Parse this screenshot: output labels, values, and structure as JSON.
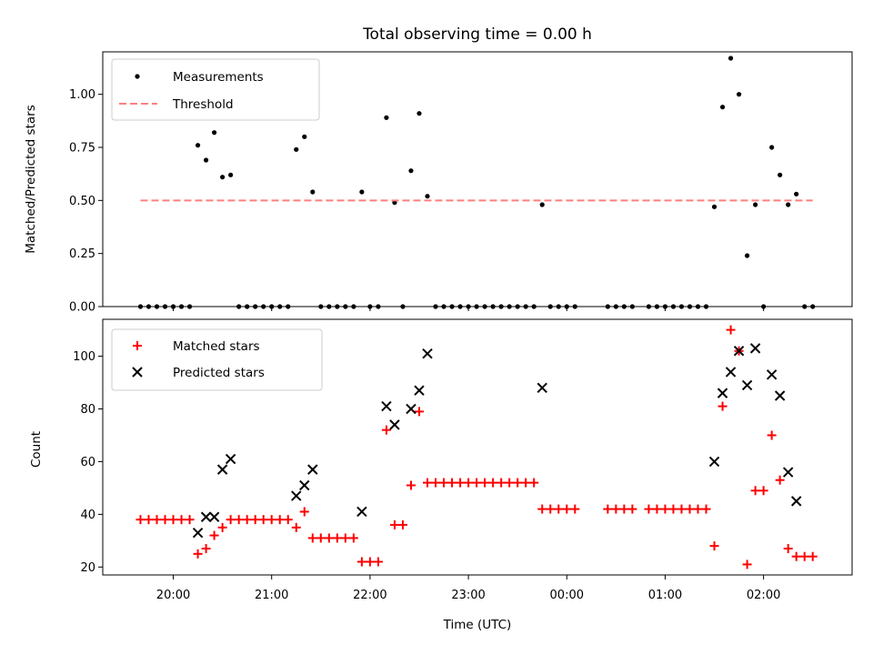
{
  "chart_data": [
    {
      "type": "scatter",
      "title": "Total observing time = 0.00 h",
      "xlabel": "",
      "ylabel": "Matched/Predicted stars",
      "ylim": [
        0,
        1.2
      ],
      "y_ticks": [
        "0.00",
        "0.25",
        "0.50",
        "0.75",
        "1.00"
      ],
      "legend": {
        "placement": "top-left",
        "entries": [
          "Measurements",
          "Threshold"
        ]
      },
      "colors": {
        "measurements": "#000000",
        "threshold": "#ff7f7f"
      },
      "threshold": {
        "name": "Threshold",
        "value": 0.5,
        "x_range": [
          "19:40",
          "02:30"
        ]
      },
      "series": [
        {
          "name": "Measurements",
          "points": [
            [
              "19:40",
              0
            ],
            [
              "19:45",
              0
            ],
            [
              "19:50",
              0
            ],
            [
              "19:55",
              0
            ],
            [
              "20:00",
              0
            ],
            [
              "20:05",
              0
            ],
            [
              "20:10",
              0
            ],
            [
              "20:15",
              0.76
            ],
            [
              "20:20",
              0.69
            ],
            [
              "20:25",
              0.82
            ],
            [
              "20:30",
              0.61
            ],
            [
              "20:35",
              0.62
            ],
            [
              "20:40",
              0
            ],
            [
              "20:45",
              0
            ],
            [
              "20:50",
              0
            ],
            [
              "20:55",
              0
            ],
            [
              "21:00",
              0
            ],
            [
              "21:05",
              0
            ],
            [
              "21:10",
              0
            ],
            [
              "21:15",
              0.74
            ],
            [
              "21:20",
              0.8
            ],
            [
              "21:25",
              0.54
            ],
            [
              "21:30",
              0
            ],
            [
              "21:35",
              0
            ],
            [
              "21:40",
              0
            ],
            [
              "21:45",
              0
            ],
            [
              "21:50",
              0
            ],
            [
              "21:55",
              0.54
            ],
            [
              "22:00",
              0
            ],
            [
              "22:05",
              0
            ],
            [
              "22:10",
              0.89
            ],
            [
              "22:15",
              0.49
            ],
            [
              "22:20",
              0
            ],
            [
              "22:25",
              0.64
            ],
            [
              "22:30",
              0.91
            ],
            [
              "22:35",
              0.52
            ],
            [
              "22:40",
              0
            ],
            [
              "22:45",
              0
            ],
            [
              "22:50",
              0
            ],
            [
              "22:55",
              0
            ],
            [
              "23:00",
              0
            ],
            [
              "23:05",
              0
            ],
            [
              "23:10",
              0
            ],
            [
              "23:15",
              0
            ],
            [
              "23:20",
              0
            ],
            [
              "23:25",
              0
            ],
            [
              "23:30",
              0
            ],
            [
              "23:35",
              0
            ],
            [
              "23:40",
              0
            ],
            [
              "23:45",
              0.48
            ],
            [
              "23:50",
              0
            ],
            [
              "23:55",
              0
            ],
            [
              "00:00",
              0
            ],
            [
              "00:05",
              0
            ],
            [
              "00:25",
              0
            ],
            [
              "00:30",
              0
            ],
            [
              "00:35",
              0
            ],
            [
              "00:40",
              0
            ],
            [
              "00:50",
              0
            ],
            [
              "00:55",
              0
            ],
            [
              "01:00",
              0
            ],
            [
              "01:05",
              0
            ],
            [
              "01:10",
              0
            ],
            [
              "01:15",
              0
            ],
            [
              "01:20",
              0
            ],
            [
              "01:25",
              0
            ],
            [
              "01:30",
              0.47
            ],
            [
              "01:35",
              0.94
            ],
            [
              "01:40",
              1.17
            ],
            [
              "01:45",
              1.0
            ],
            [
              "01:50",
              0.24
            ],
            [
              "01:55",
              0.48
            ],
            [
              "02:00",
              0
            ],
            [
              "02:05",
              0.75
            ],
            [
              "02:10",
              0.62
            ],
            [
              "02:15",
              0.48
            ],
            [
              "02:20",
              0.53
            ],
            [
              "02:25",
              0
            ],
            [
              "02:30",
              0
            ]
          ]
        }
      ]
    },
    {
      "type": "scatter",
      "title": "",
      "xlabel": "Time (UTC)",
      "ylabel": "Count",
      "ylim": [
        17,
        114
      ],
      "y_ticks": [
        "20",
        "40",
        "60",
        "80",
        "100"
      ],
      "x_ticks": [
        "20:00",
        "21:00",
        "22:00",
        "23:00",
        "00:00",
        "01:00",
        "02:00"
      ],
      "legend": {
        "placement": "top-left",
        "entries": [
          "Matched stars",
          "Predicted stars"
        ]
      },
      "colors": {
        "matched": "#ff0000",
        "predicted": "#000000"
      },
      "series": [
        {
          "name": "Matched stars",
          "points": [
            [
              "19:40",
              38
            ],
            [
              "19:45",
              38
            ],
            [
              "19:50",
              38
            ],
            [
              "19:55",
              38
            ],
            [
              "20:00",
              38
            ],
            [
              "20:05",
              38
            ],
            [
              "20:10",
              38
            ],
            [
              "20:15",
              25
            ],
            [
              "20:20",
              27
            ],
            [
              "20:25",
              32
            ],
            [
              "20:30",
              35
            ],
            [
              "20:35",
              38
            ],
            [
              "20:40",
              38
            ],
            [
              "20:45",
              38
            ],
            [
              "20:50",
              38
            ],
            [
              "20:55",
              38
            ],
            [
              "21:00",
              38
            ],
            [
              "21:05",
              38
            ],
            [
              "21:10",
              38
            ],
            [
              "21:15",
              35
            ],
            [
              "21:20",
              41
            ],
            [
              "21:25",
              31
            ],
            [
              "21:30",
              31
            ],
            [
              "21:35",
              31
            ],
            [
              "21:40",
              31
            ],
            [
              "21:45",
              31
            ],
            [
              "21:50",
              31
            ],
            [
              "21:55",
              22
            ],
            [
              "22:00",
              22
            ],
            [
              "22:05",
              22
            ],
            [
              "22:10",
              72
            ],
            [
              "22:15",
              36
            ],
            [
              "22:20",
              36
            ],
            [
              "22:25",
              51
            ],
            [
              "22:30",
              79
            ],
            [
              "22:35",
              52
            ],
            [
              "22:40",
              52
            ],
            [
              "22:45",
              52
            ],
            [
              "22:50",
              52
            ],
            [
              "22:55",
              52
            ],
            [
              "23:00",
              52
            ],
            [
              "23:05",
              52
            ],
            [
              "23:10",
              52
            ],
            [
              "23:15",
              52
            ],
            [
              "23:20",
              52
            ],
            [
              "23:25",
              52
            ],
            [
              "23:30",
              52
            ],
            [
              "23:35",
              52
            ],
            [
              "23:40",
              52
            ],
            [
              "23:45",
              42
            ],
            [
              "23:50",
              42
            ],
            [
              "23:55",
              42
            ],
            [
              "00:00",
              42
            ],
            [
              "00:05",
              42
            ],
            [
              "00:25",
              42
            ],
            [
              "00:30",
              42
            ],
            [
              "00:35",
              42
            ],
            [
              "00:40",
              42
            ],
            [
              "00:50",
              42
            ],
            [
              "00:55",
              42
            ],
            [
              "01:00",
              42
            ],
            [
              "01:05",
              42
            ],
            [
              "01:10",
              42
            ],
            [
              "01:15",
              42
            ],
            [
              "01:20",
              42
            ],
            [
              "01:25",
              42
            ],
            [
              "01:30",
              28
            ],
            [
              "01:35",
              81
            ],
            [
              "01:40",
              110
            ],
            [
              "01:45",
              102
            ],
            [
              "01:50",
              21
            ],
            [
              "01:55",
              49
            ],
            [
              "02:00",
              49
            ],
            [
              "02:05",
              70
            ],
            [
              "02:10",
              53
            ],
            [
              "02:15",
              27
            ],
            [
              "02:20",
              24
            ],
            [
              "02:25",
              24
            ],
            [
              "02:30",
              24
            ]
          ]
        },
        {
          "name": "Predicted stars",
          "points": [
            [
              "20:15",
              33
            ],
            [
              "20:20",
              39
            ],
            [
              "20:25",
              39
            ],
            [
              "20:30",
              57
            ],
            [
              "20:35",
              61
            ],
            [
              "21:15",
              47
            ],
            [
              "21:20",
              51
            ],
            [
              "21:25",
              57
            ],
            [
              "21:55",
              41
            ],
            [
              "22:10",
              81
            ],
            [
              "22:15",
              74
            ],
            [
              "22:25",
              80
            ],
            [
              "22:30",
              87
            ],
            [
              "22:35",
              101
            ],
            [
              "23:45",
              88
            ],
            [
              "01:30",
              60
            ],
            [
              "01:35",
              86
            ],
            [
              "01:40",
              94
            ],
            [
              "01:45",
              102
            ],
            [
              "01:50",
              89
            ],
            [
              "01:55",
              103
            ],
            [
              "02:05",
              93
            ],
            [
              "02:10",
              85
            ],
            [
              "02:15",
              56
            ],
            [
              "02:20",
              45
            ]
          ]
        }
      ]
    }
  ]
}
